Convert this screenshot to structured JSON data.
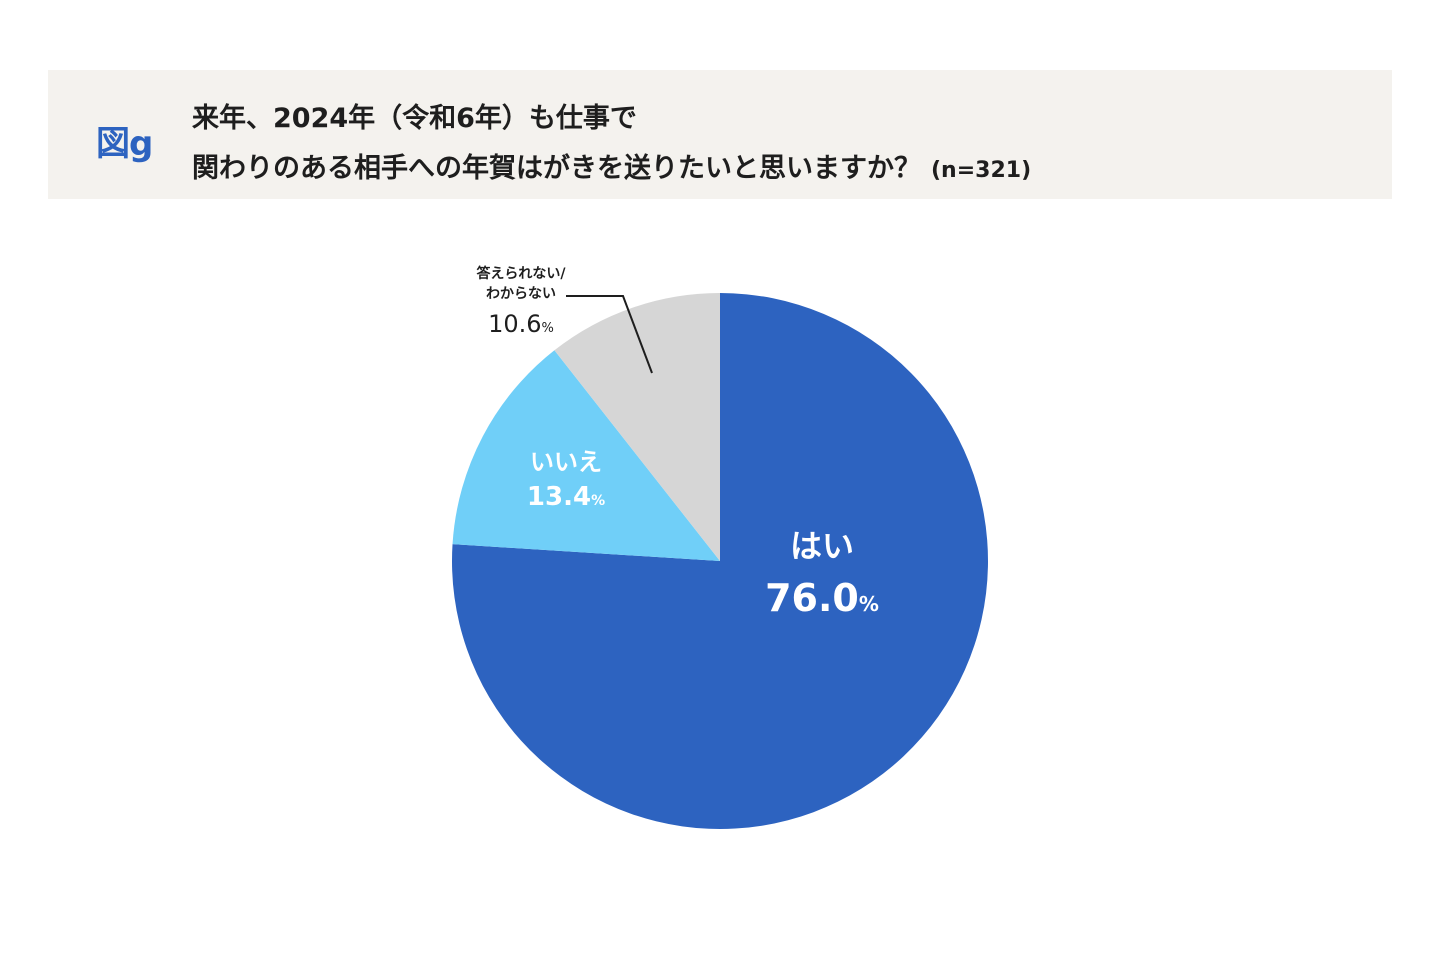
{
  "header": {
    "fig_label": "図g",
    "title_line1": "来年、2024年（令和6年）も仕事で",
    "title_line2": "関わりのある相手への年賀はがきを送りたいと思いますか？",
    "sample_size": "(n=321)"
  },
  "chart_data": {
    "type": "pie",
    "title": "来年、2024年（令和6年）も仕事で関わりのある相手への年賀はがきを送りたいと思いますか？",
    "n": 321,
    "start_angle_deg": 0,
    "direction": "clockwise",
    "slices": [
      {
        "label": "はい",
        "value": 76.0,
        "num": "76.0",
        "pct": "%",
        "color": "#2d63c0",
        "label_color": "#ffffff"
      },
      {
        "label": "いいえ",
        "value": 13.4,
        "num": "13.4",
        "pct": "%",
        "color": "#70cff8",
        "label_color": "#ffffff"
      },
      {
        "label_lines": [
          "答えられない/",
          "わからない"
        ],
        "value": 10.6,
        "num": "10.6",
        "pct": "%",
        "color": "#d6d6d6",
        "label_color": "#1e1e1e"
      }
    ]
  }
}
